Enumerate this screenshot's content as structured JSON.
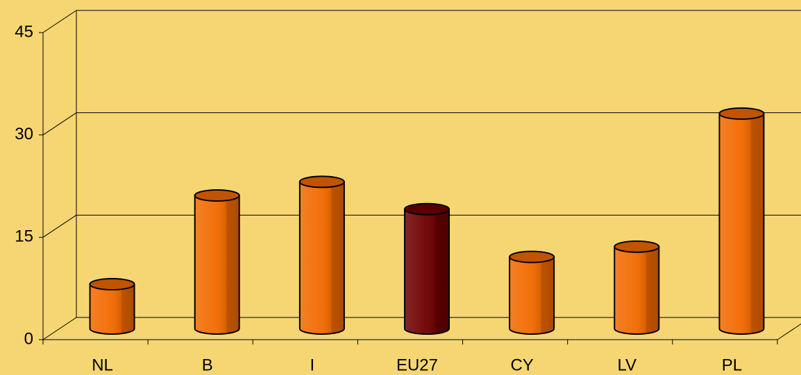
{
  "chart_data": {
    "type": "bar",
    "categories": [
      "NL",
      "B",
      "I",
      "EU27",
      "CY",
      "LV",
      "PL"
    ],
    "values": [
      6.5,
      19.5,
      21.5,
      17.5,
      10.5,
      12,
      31.5
    ],
    "colors": [
      "#f26a00",
      "#f26a00",
      "#f26a00",
      "#6e0000",
      "#f26a00",
      "#f26a00",
      "#f26a00"
    ],
    "ylim": [
      0,
      45
    ],
    "yticks": [
      0,
      15,
      30,
      45
    ],
    "grid": true
  }
}
